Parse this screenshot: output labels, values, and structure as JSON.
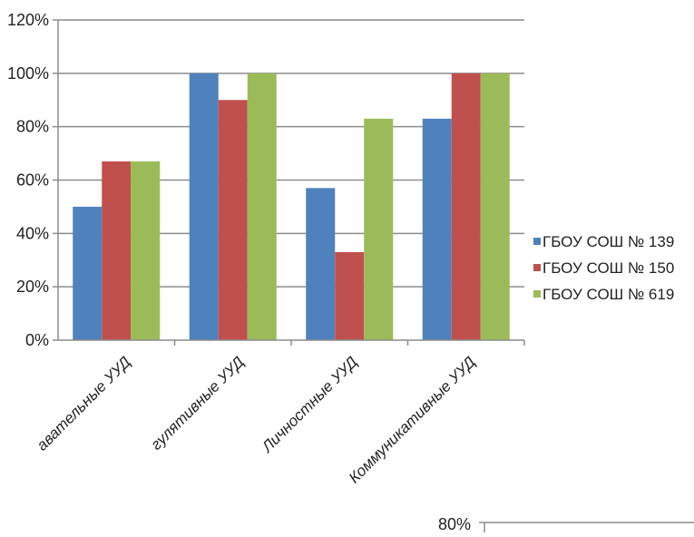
{
  "chart_data": {
    "type": "bar",
    "categories": [
      "Познавательные УУД",
      "Регулятивные УУД",
      "Личностные УУД",
      "Коммуникативные УУД"
    ],
    "categories_visible_text": [
      "авательные УУД",
      "гулятивные УУД",
      "Личностные УУД",
      "Коммуникативные УУД"
    ],
    "series": [
      {
        "name": "ГБОУ СОШ № 139",
        "color": "#4f81bd",
        "values": [
          50,
          100,
          57,
          83
        ]
      },
      {
        "name": "ГБОУ СОШ № 150",
        "color": "#c0504d",
        "values": [
          67,
          90,
          33,
          100
        ]
      },
      {
        "name": "ГБОУ СОШ № 619",
        "color": "#9bbb59",
        "values": [
          67,
          100,
          83,
          100
        ]
      }
    ],
    "y_ticks": [
      "0%",
      "20%",
      "40%",
      "60%",
      "80%",
      "100%",
      "120%"
    ],
    "ylim": [
      0,
      120
    ],
    "ylabel": "",
    "xlabel": "",
    "title": "",
    "grid": true,
    "legend_position": "right"
  },
  "second_chart_fragment": {
    "tick_label": "80%"
  }
}
